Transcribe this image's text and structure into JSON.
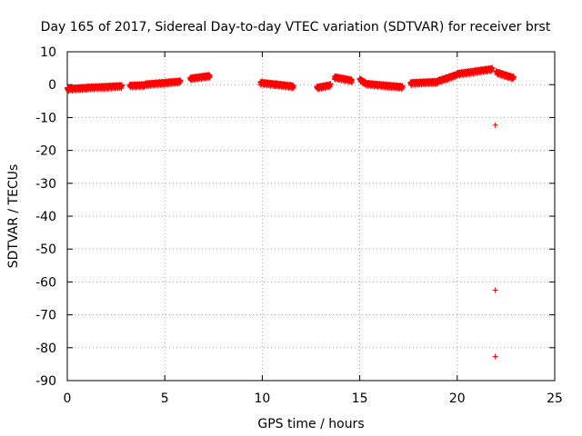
{
  "chart_data": {
    "type": "scatter",
    "title": "Day 165 of 2017, Sidereal Day-to-day VTEC variation (SDTVAR) for receiver brst",
    "xlabel": "GPS time / hours",
    "ylabel": "SDTVAR / TECUs",
    "xlim": [
      0,
      25
    ],
    "ylim": [
      -90,
      10
    ],
    "xticks": [
      "0",
      "5",
      "10",
      "15",
      "20",
      "25"
    ],
    "yticks": [
      "10",
      "0",
      "-10",
      "-20",
      "-30",
      "-40",
      "-50",
      "-60",
      "-70",
      "-80",
      "-90"
    ],
    "grid": true,
    "legend": "none",
    "marker": "+",
    "series_color": "#ff0000",
    "segments": [
      {
        "x0": 0.0,
        "x1": 1.0,
        "y0": -1.6,
        "y1": -1.2
      },
      {
        "x0": 1.0,
        "x1": 2.8,
        "y0": -1.2,
        "y1": -0.7
      },
      {
        "x0": 3.2,
        "x1": 4.0,
        "y0": -0.6,
        "y1": -0.4
      },
      {
        "x0": 4.0,
        "x1": 5.8,
        "y0": -0.2,
        "y1": 0.7
      },
      {
        "x0": 6.3,
        "x1": 7.3,
        "y0": 1.6,
        "y1": 2.4
      },
      {
        "x0": 9.9,
        "x1": 10.7,
        "y0": 0.3,
        "y1": -0.2
      },
      {
        "x0": 10.7,
        "x1": 11.6,
        "y0": -0.2,
        "y1": -0.8
      },
      {
        "x0": 12.8,
        "x1": 13.5,
        "y0": -1.2,
        "y1": -0.4
      },
      {
        "x0": 13.7,
        "x1": 14.6,
        "y0": 2.0,
        "y1": 1.0
      },
      {
        "x0": 15.0,
        "x1": 15.3,
        "y0": 1.3,
        "y1": 0.2
      },
      {
        "x0": 15.3,
        "x1": 17.2,
        "y0": 0.0,
        "y1": -1.0
      },
      {
        "x0": 17.6,
        "x1": 19.0,
        "y0": 0.2,
        "y1": 0.6
      },
      {
        "x0": 19.0,
        "x1": 20.0,
        "y0": 0.8,
        "y1": 2.8
      },
      {
        "x0": 20.0,
        "x1": 21.8,
        "y0": 3.0,
        "y1": 4.5
      },
      {
        "x0": 22.0,
        "x1": 22.9,
        "y0": 3.5,
        "y1": 1.8
      }
    ],
    "outliers": [
      {
        "x": 21.95,
        "y": -12.3
      },
      {
        "x": 21.95,
        "y": -62.5
      },
      {
        "x": 21.95,
        "y": -82.7
      }
    ]
  }
}
